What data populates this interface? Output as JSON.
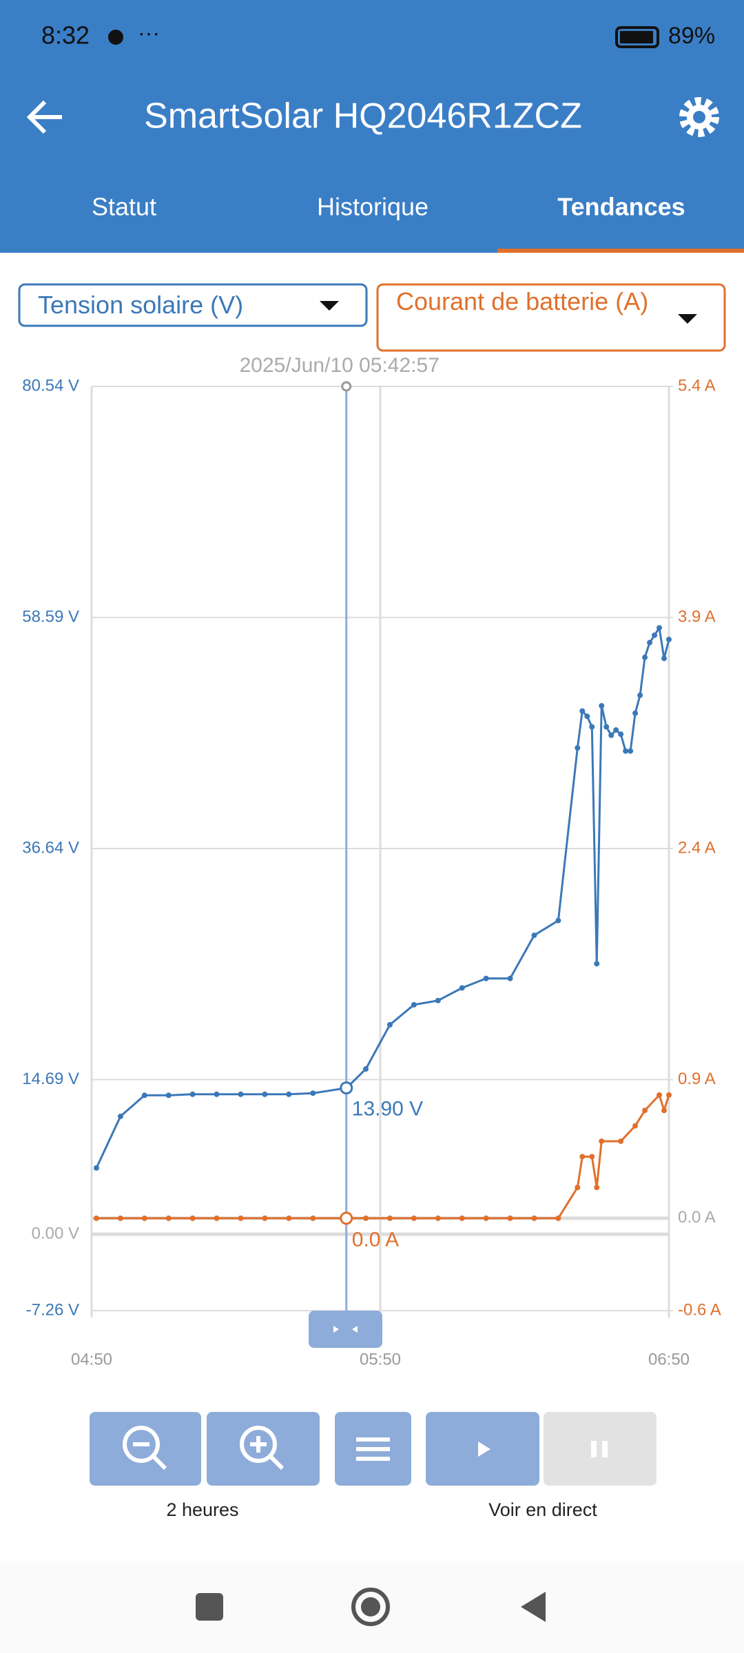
{
  "status_bar": {
    "time": "8:32",
    "battery": "89%"
  },
  "header": {
    "title": "SmartSolar HQ2046R1ZCZ"
  },
  "tabs": {
    "items": [
      "Statut",
      "Historique",
      "Tendances"
    ],
    "active": 2
  },
  "selectors": {
    "left": "Tension solaire (V)",
    "right": "Courant de batterie (A)"
  },
  "chart_data": {
    "type": "line",
    "xlim": [
      "04:50",
      "06:50"
    ],
    "xticks": [
      "04:50",
      "05:50",
      "06:50"
    ],
    "ylim": [
      -7.26,
      80.54
    ],
    "yticks": [
      {
        "value": 80.54,
        "label": "80.54 V"
      },
      {
        "value": 58.59,
        "label": "58.59 V"
      },
      {
        "value": 36.64,
        "label": "36.64 V"
      },
      {
        "value": 14.69,
        "label": "14.69 V"
      },
      {
        "value": 0,
        "label": "0.00 V"
      },
      {
        "value": -7.26,
        "label": "-7.26 V"
      }
    ],
    "y2lim": [
      -0.6,
      5.4
    ],
    "y2ticks": [
      {
        "value": 5.4,
        "label": "5.4 A"
      },
      {
        "value": 3.9,
        "label": "3.9 A"
      },
      {
        "value": 2.4,
        "label": "2.4 A"
      },
      {
        "value": 0.9,
        "label": "0.9 A"
      },
      {
        "value": 0,
        "label": "0.0 A"
      },
      {
        "value": -0.6,
        "label": "-0.6 A"
      }
    ],
    "grid": true,
    "series": [
      {
        "color": "#3b78b8",
        "axis": "y",
        "x": [
          "04:51",
          "04:56",
          "05:01",
          "05:06",
          "05:11",
          "05:16",
          "05:21",
          "05:26",
          "05:31",
          "05:36",
          "05:43",
          "05:47",
          "05:52",
          "05:57",
          "06:02",
          "06:07",
          "06:12",
          "06:17",
          "06:22",
          "06:27",
          "06:31",
          "06:32",
          "06:33",
          "06:34",
          "06:35",
          "06:36",
          "06:37",
          "06:38",
          "06:39",
          "06:40",
          "06:41",
          "06:42",
          "06:43",
          "06:44",
          "06:45",
          "06:46",
          "06:47",
          "06:48",
          "06:49",
          "06:50"
        ],
        "values": [
          6.3,
          11.2,
          13.2,
          13.2,
          13.3,
          13.3,
          13.3,
          13.3,
          13.3,
          13.4,
          13.9,
          15.7,
          19.9,
          21.8,
          22.2,
          23.4,
          24.3,
          24.3,
          28.4,
          29.8,
          46.2,
          49.7,
          49.2,
          48.2,
          25.7,
          50.2,
          48.2,
          47.4,
          47.9,
          47.5,
          45.9,
          45.9,
          49.5,
          51.2,
          54.8,
          56.2,
          56.9,
          57.6,
          54.7,
          56.5
        ]
      },
      {
        "color": "#e0702c",
        "axis": "y2",
        "x": [
          "04:51",
          "04:56",
          "05:01",
          "05:06",
          "05:11",
          "05:16",
          "05:21",
          "05:26",
          "05:31",
          "05:36",
          "05:43",
          "05:47",
          "05:52",
          "05:57",
          "06:02",
          "06:07",
          "06:12",
          "06:17",
          "06:22",
          "06:27",
          "06:31",
          "06:32",
          "06:34",
          "06:35",
          "06:36",
          "06:40",
          "06:43",
          "06:45",
          "06:48",
          "06:49",
          "06:50"
        ],
        "values": [
          0,
          0,
          0,
          0,
          0,
          0,
          0,
          0,
          0,
          0,
          0,
          0,
          0,
          0,
          0,
          0,
          0,
          0,
          0,
          0,
          0.2,
          0.4,
          0.4,
          0.2,
          0.5,
          0.5,
          0.6,
          0.7,
          0.8,
          0.7,
          0.8
        ]
      }
    ],
    "cursor": {
      "label": "2025/Jun/10 05:42:57",
      "value": 13.9,
      "value_label": "13.90 V",
      "value2": 0,
      "value2_label": "0.0 A"
    }
  },
  "controls": {
    "zoom_label": "2 heures",
    "live_label": "Voir en direct"
  }
}
